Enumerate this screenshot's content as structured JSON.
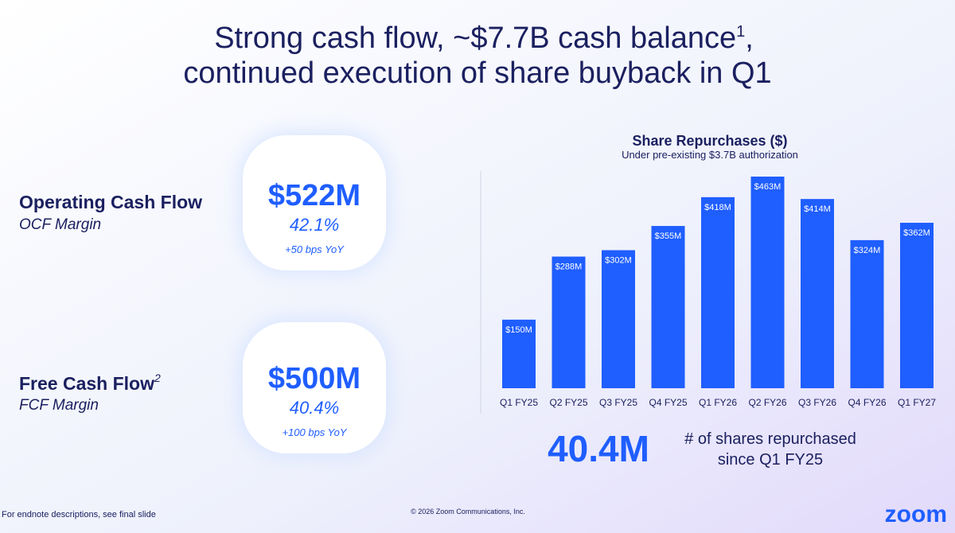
{
  "title": {
    "line1": "Strong cash flow, ~$7.7B cash balance",
    "line1_note": "1",
    "line1_end": ",",
    "line2": "continued execution of share buyback in Q1"
  },
  "metrics": [
    {
      "label": "Operating Cash Flow",
      "sublabel": "OCF Margin",
      "value": "$522M",
      "margin": "42.1%",
      "change": "+50 bps YoY"
    },
    {
      "label": "Free Cash Flow",
      "label_note": "2",
      "sublabel": "FCF Margin",
      "value": "$500M",
      "margin": "40.4%",
      "change": "+100 bps YoY"
    }
  ],
  "chart_data": {
    "type": "bar",
    "title": "Share Repurchases ($)",
    "subtitle": "Under pre-existing $3.7B authorization",
    "categories": [
      "Q1 FY25",
      "Q2 FY25",
      "Q3 FY25",
      "Q4 FY25",
      "Q1 FY26",
      "Q2 FY26",
      "Q3 FY26",
      "Q4 FY26",
      "Q1 FY27"
    ],
    "values": [
      150,
      288,
      302,
      355,
      418,
      463,
      414,
      324,
      362
    ],
    "value_labels": [
      "$150M",
      "$288M",
      "$302M",
      "$355M",
      "$418M",
      "$463M",
      "$414M",
      "$324M",
      "$362M"
    ],
    "color": "#1f5eff"
  },
  "shares": {
    "value": "40.4M",
    "line1": "# of shares repurchased",
    "line2": "since Q1 FY25"
  },
  "footer": {
    "note": "For endnote descriptions, see final slide",
    "copyright": "© 2026 Zoom Communications, Inc.",
    "logo": "zoom"
  }
}
